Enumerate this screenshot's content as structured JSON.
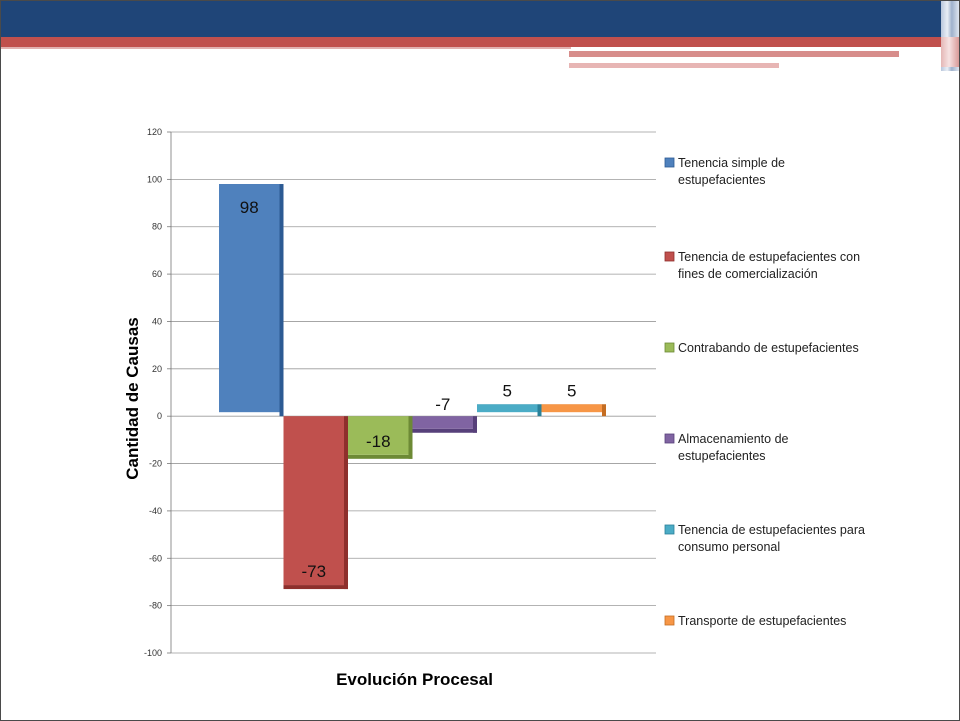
{
  "chart_data": {
    "type": "bar",
    "title": "",
    "xlabel": "Evolución Procesal",
    "ylabel": "Cantidad de Causas",
    "ylim": [
      -100,
      120
    ],
    "yticks": [
      120,
      100,
      80,
      60,
      40,
      20,
      0,
      -20,
      -40,
      -60,
      -80,
      -100
    ],
    "grid": true,
    "legend_position": "right",
    "series": [
      {
        "name": "Tenencia simple de estupefacientes",
        "legend_lines": [
          "Tenencia simple de",
          "estupefacientes"
        ],
        "value": 98,
        "label": "98",
        "color": "#4f81bd",
        "edge": "#2c5a93"
      },
      {
        "name": "Tenencia de estupefacientes con fines de comercialización",
        "legend_lines": [
          "Tenencia de estupefacientes con",
          "fines de comercialización"
        ],
        "value": -73,
        "label": "-73",
        "color": "#c0504d",
        "edge": "#8e2f2c"
      },
      {
        "name": "Contrabando de estupefacientes",
        "legend_lines": [
          "Contrabando de estupefacientes"
        ],
        "value": -18,
        "label": "-18",
        "color": "#9bbb59",
        "edge": "#6d8a35"
      },
      {
        "name": "Almacenamiento de estupefacientes",
        "legend_lines": [
          "Almacenamiento de",
          "estupefacientes"
        ],
        "value": -7,
        "label": "-7",
        "color": "#8064a2",
        "edge": "#57407a"
      },
      {
        "name": "Tenencia de estupefacientes para consumo personal",
        "legend_lines": [
          "Tenencia de estupefacientes para",
          "consumo personal"
        ],
        "value": 5,
        "label": "5",
        "color": "#4bacc6",
        "edge": "#2a8199"
      },
      {
        "name": "Transporte de estupefacientes",
        "legend_lines": [
          "Transporte de estupefacientes"
        ],
        "value": 5,
        "label": "5",
        "color": "#f79646",
        "edge": "#c46d22"
      }
    ]
  }
}
